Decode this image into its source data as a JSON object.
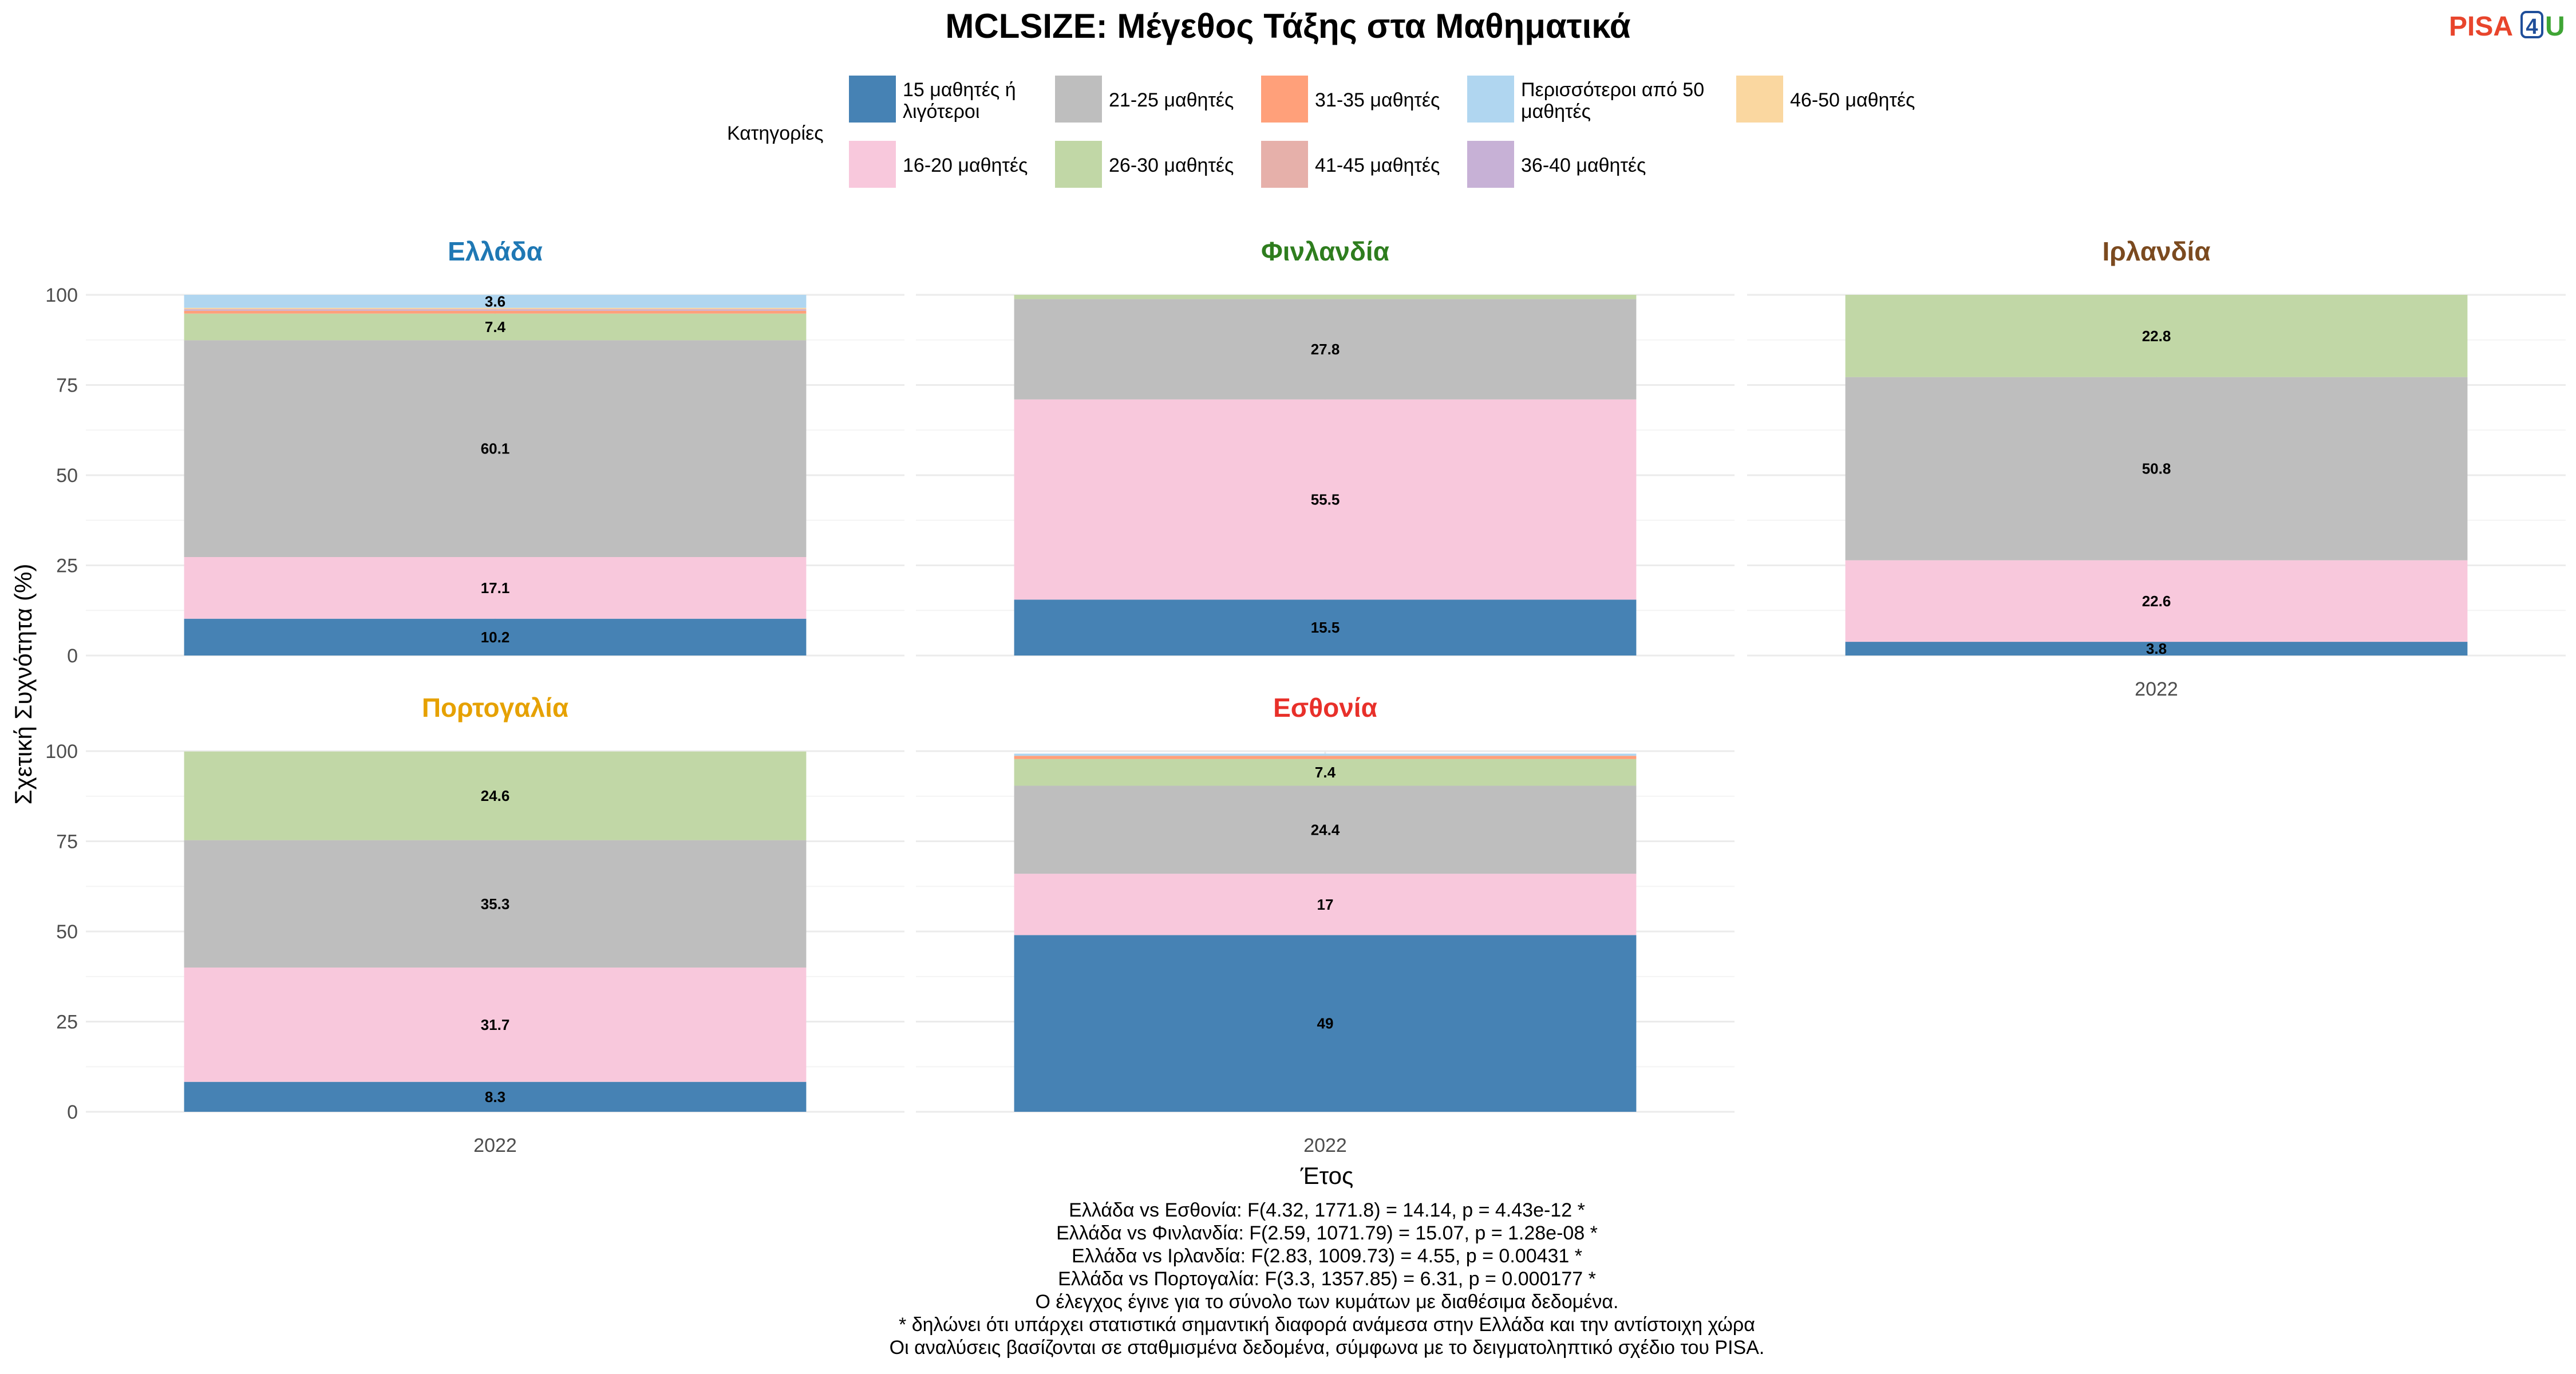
{
  "header": {
    "title": "MCLSIZE: Μέγεθος Τάξης στα Μαθηματικά",
    "logo": {
      "text": "PISA",
      "digit": "4",
      "suffix": "U"
    }
  },
  "legend": {
    "title": "Κατηγορίες",
    "items": [
      {
        "key": "c15",
        "label": [
          "15 μαθητές ή",
          "λιγότεροι"
        ],
        "color": "#4682B4"
      },
      {
        "key": "c21",
        "label": [
          "21-25 μαθητές"
        ],
        "color": "#BEBEBE"
      },
      {
        "key": "c31",
        "label": [
          "31-35 μαθητές"
        ],
        "color": "#FFA07A"
      },
      {
        "key": "c50p",
        "label": [
          "Περισσότεροι από 50",
          "μαθητές"
        ],
        "color": "#B0D6F0"
      },
      {
        "key": "c46",
        "label": [
          "46-50 μαθητές"
        ],
        "color": "#FAD7A0"
      },
      {
        "key": "c16",
        "label": [
          "16-20 μαθητές"
        ],
        "color": "#F8C8DC"
      },
      {
        "key": "c26",
        "label": [
          "26-30 μαθητές"
        ],
        "color": "#C1D7A6"
      },
      {
        "key": "c41",
        "label": [
          "41-45 μαθητές"
        ],
        "color": "#E6B0AA"
      },
      {
        "key": "c36",
        "label": [
          "36-40 μαθητές"
        ],
        "color": "#C7B1D6"
      }
    ]
  },
  "chart_data": {
    "type": "bar",
    "stacked": true,
    "x_categories": [
      "2022"
    ],
    "xlabel": "Έτος",
    "ylabel": "Σχετική Συχνότητα (%)",
    "ylim": [
      0,
      100
    ],
    "yticks": [
      0,
      25,
      50,
      75,
      100
    ],
    "stack_order": [
      "c15",
      "c16",
      "c21",
      "c26",
      "c31",
      "c36",
      "c41",
      "c46",
      "c50p"
    ],
    "panels": [
      {
        "name": "Ελλάδα",
        "title_color": "#1F78B4",
        "values": {
          "c15": 10.2,
          "c16": 17.1,
          "c21": 60.1,
          "c26": 7.4,
          "c31": 0.8,
          "c36": 0.3,
          "c41": 0.2,
          "c46": 0.3,
          "c50p": 3.6
        },
        "labels": {
          "c15": "10.2",
          "c16": "17.1",
          "c21": "60.1",
          "c26": "7.4",
          "c50p": "3.6"
        }
      },
      {
        "name": "Φινλανδία",
        "title_color": "#2E7D1E",
        "values": {
          "c15": 15.5,
          "c16": 55.5,
          "c21": 27.8,
          "c26": 1.2
        },
        "labels": {
          "c15": "15.5",
          "c16": "55.5",
          "c21": "27.8"
        }
      },
      {
        "name": "Ιρλανδία",
        "title_color": "#7B4A1F",
        "values": {
          "c15": 3.8,
          "c16": 22.6,
          "c21": 50.8,
          "c26": 22.8
        },
        "labels": {
          "c15": "3.8",
          "c16": "22.6",
          "c21": "50.8",
          "c26": "22.8"
        }
      },
      {
        "name": "Πορτογαλία",
        "title_color": "#E6A100",
        "values": {
          "c15": 8.3,
          "c16": 31.7,
          "c21": 35.3,
          "c26": 24.6
        },
        "labels": {
          "c15": "8.3",
          "c16": "31.7",
          "c21": "35.3",
          "c26": "24.6"
        }
      },
      {
        "name": "Εσθονία",
        "title_color": "#E8302A",
        "values": {
          "c15": 49,
          "c16": 17,
          "c21": 24.4,
          "c26": 7.4,
          "c31": 0.9,
          "c50p": 0.6
        },
        "labels": {
          "c15": "49",
          "c16": "17",
          "c21": "24.4",
          "c26": "7.4"
        }
      }
    ]
  },
  "footnotes": [
    "Ελλάδα vs Εσθονία: F(4.32, 1771.8) = 14.14, p = 4.43e-12 *",
    "Ελλάδα vs Φινλανδία: F(2.59, 1071.79) = 15.07, p = 1.28e-08 *",
    "Ελλάδα vs Ιρλανδία: F(2.83, 1009.73) = 4.55, p = 0.00431 *",
    "Ελλάδα vs Πορτογαλία: F(3.3, 1357.85) = 6.31, p = 0.000177 *",
    "Ο έλεγχος έγινε για το σύνολο των κυμάτων με διαθέσιμα δεδομένα.",
    "* δηλώνει ότι υπάρχει στατιστικά σημαντική διαφορά ανάμεσα στην Ελλάδα και την αντίστοιχη χώρα",
    "Οι αναλύσεις βασίζονται σε σταθμισμένα δεδομένα, σύμφωνα με το δειγματοληπτικό σχέδιο του PISA."
  ],
  "colors": {
    "logo_pisa": "#E8452C",
    "logo_digit": "#1F4E9A",
    "logo_u": "#3FA535",
    "grid": "#EBEBEB"
  }
}
